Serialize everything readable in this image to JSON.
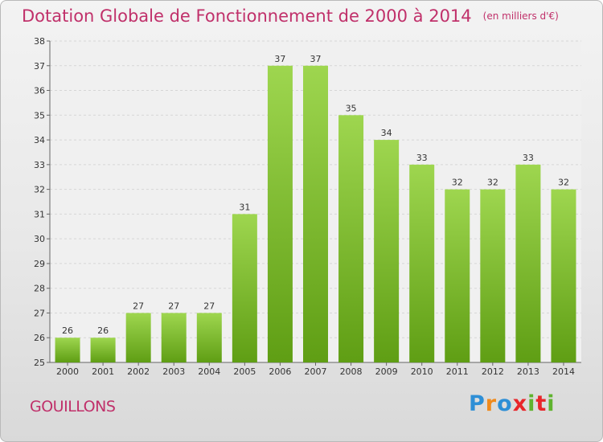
{
  "header": {
    "title": "Dotation Globale de Fonctionnement de 2000 à 2014",
    "subtitle": "(en milliers d'€)"
  },
  "commune": "GOUILLONS",
  "logo": {
    "letters": [
      "P",
      "r",
      "o",
      "x",
      "i",
      "t",
      "i"
    ],
    "text": "Proxiti"
  },
  "colors": {
    "title": "#c0306a",
    "bar_light": "#9ed64f",
    "bar_dark": "#5f9e14",
    "logo": [
      "#2e8fd6",
      "#f08a1c",
      "#2e8fd6",
      "#e8262b",
      "#5fb32e",
      "#e8262b",
      "#5fb32e"
    ]
  },
  "chart_data": {
    "type": "bar",
    "title": "Dotation Globale de Fonctionnement de 2000 à 2014",
    "subtitle": "(en milliers d'€)",
    "xlabel": "",
    "ylabel": "",
    "categories": [
      "2000",
      "2001",
      "2002",
      "2003",
      "2004",
      "2005",
      "2006",
      "2007",
      "2008",
      "2009",
      "2010",
      "2011",
      "2012",
      "2013",
      "2014"
    ],
    "values": [
      26,
      26,
      27,
      27,
      27,
      31,
      37,
      37,
      35,
      34,
      33,
      32,
      32,
      33,
      32
    ],
    "ylim": [
      25,
      38
    ],
    "yticks": [
      25,
      26,
      27,
      28,
      29,
      30,
      31,
      32,
      33,
      34,
      35,
      36,
      37,
      38
    ],
    "grid": true,
    "data_labels": true
  }
}
